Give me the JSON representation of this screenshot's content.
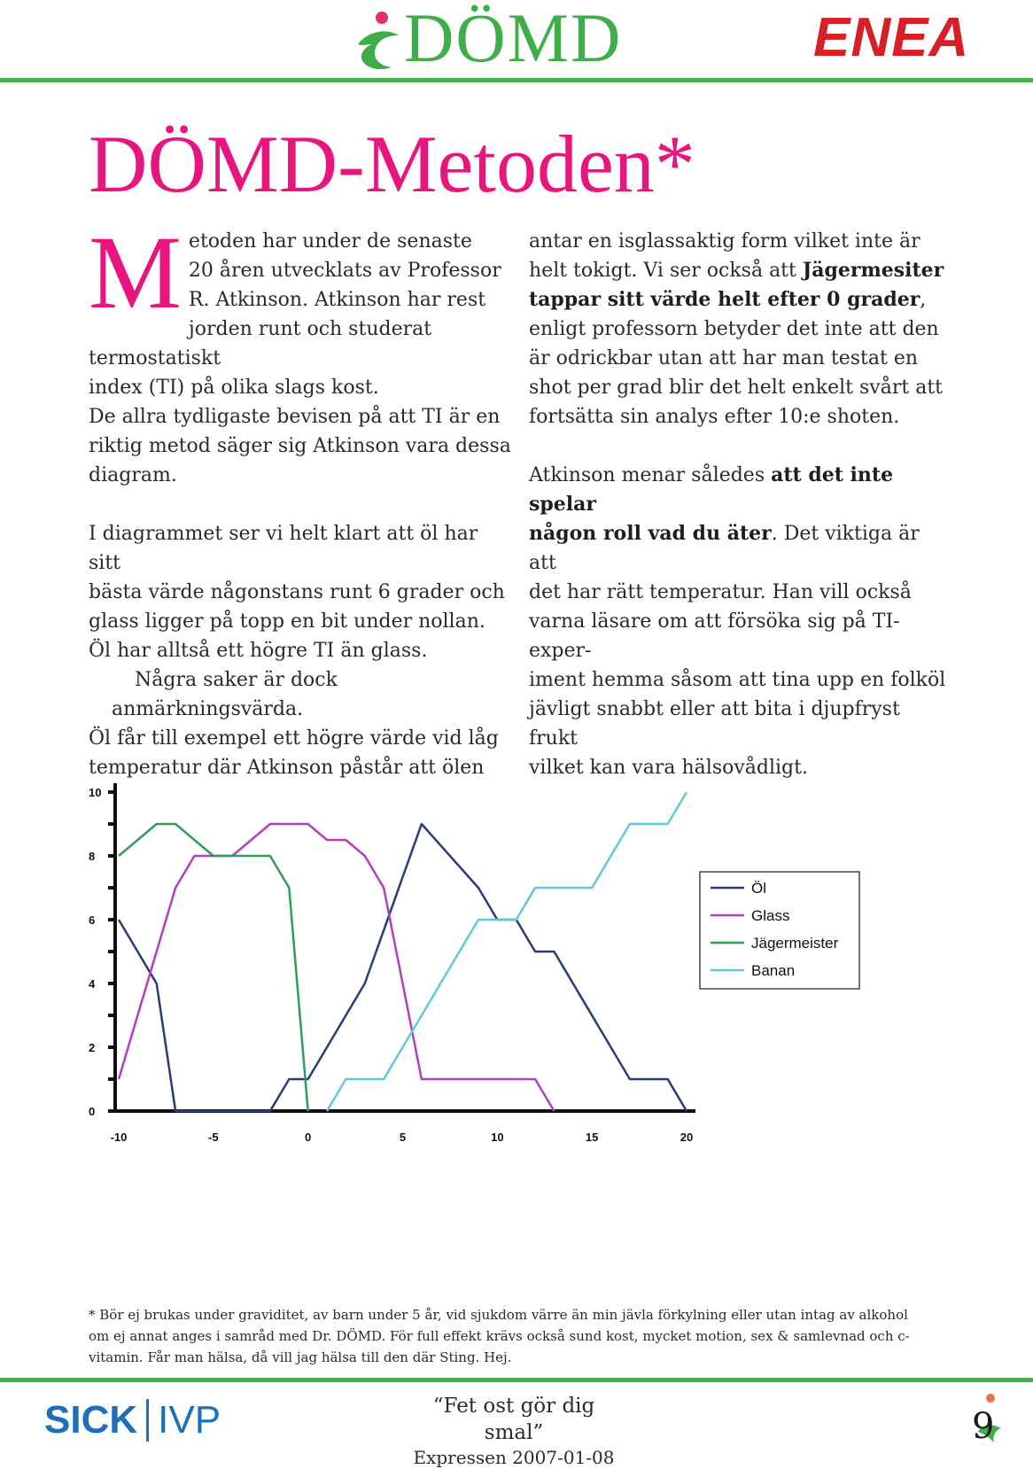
{
  "header": {
    "logo_left": "DÖMD",
    "logo_right": "ENEA"
  },
  "title": "DÖMD-Metoden*",
  "left_column": {
    "drop_cap": "M",
    "p1_lines": [
      "etoden har under de senaste",
      "20 åren utvecklats av Professor",
      "R. Atkinson. Atkinson har rest",
      "jorden runt och studerat termostatiskt",
      "index (TI) på olika slags kost.",
      "De allra tydligaste bevisen på att TI är en",
      "riktig metod säger sig Atkinson vara dessa",
      "diagram."
    ],
    "p2_lines": [
      "I diagrammet ser vi helt klart att öl har sitt",
      "bästa värde någonstans runt 6 grader och",
      "glass ligger på topp en bit under nollan.",
      "Öl har alltså ett högre TI än glass."
    ],
    "p3_lines": [
      "Några saker är dock anmärkningsvärda.",
      "Öl får till exempel ett högre värde vid låg",
      "temperatur där Atkinson påstår att ölen"
    ]
  },
  "right_column": {
    "p1": {
      "line1": "antar en isglassaktig form vilket inte är",
      "line2_pre": "helt tokigt. Vi ser också att ",
      "line2_bold": "Jägermesiter",
      "line3_bold": "tappar sitt värde helt efter 0 grader",
      "line3_post": ",",
      "rest_lines": [
        "enligt professorn betyder det inte att den",
        "är odrickbar utan att har man testat en",
        "shot per grad blir det helt enkelt svårt att",
        "fortsätta sin analys efter 10:e shoten."
      ]
    },
    "p2": {
      "line1_pre": "Atkinson menar således ",
      "line1_bold": "att det inte spelar",
      "line2_bold": "någon roll vad du äter",
      "line2_post": ". Det viktiga är att",
      "rest_lines": [
        "det har rätt temperatur. Han vill också",
        "varna läsare om att försöka sig på TI-exper-",
        "iment hemma såsom att tina upp en folköl",
        "jävligt snabbt eller att bita i djupfryst frukt",
        "vilket kan vara hälsovådligt."
      ]
    }
  },
  "chart_data": {
    "type": "line",
    "title": "",
    "xlabel": "",
    "ylabel": "",
    "xlim": [
      -10,
      20
    ],
    "ylim": [
      0,
      10
    ],
    "x_ticks": [
      -10,
      -5,
      0,
      5,
      10,
      15,
      20
    ],
    "y_ticks": [
      0,
      2,
      4,
      6,
      8,
      10
    ],
    "y_ticks_unlabeled": [
      1,
      3,
      5,
      7,
      9
    ],
    "legend": "right",
    "series": [
      {
        "name": "Öl",
        "color": "#2b3a7a",
        "x": [
          -10,
          -8,
          -7,
          -2,
          -1,
          0,
          3,
          6,
          9,
          10,
          11,
          12,
          13,
          17,
          19,
          20
        ],
        "y": [
          6,
          4,
          0,
          0,
          1,
          1,
          4,
          9,
          7,
          6,
          6,
          5,
          5,
          1,
          1,
          0
        ]
      },
      {
        "name": "Glass",
        "color": "#b33fba",
        "x": [
          -10,
          -7,
          -6,
          -4,
          -2,
          -1,
          0,
          1,
          2,
          3,
          4,
          6,
          12,
          13
        ],
        "y": [
          1,
          7,
          8,
          8,
          9,
          9,
          9,
          8.5,
          8.5,
          8,
          7,
          1,
          1,
          0
        ]
      },
      {
        "name": "Jägermeister",
        "color": "#2e9e58",
        "x": [
          -10,
          -8,
          -7,
          -5,
          -2,
          -1,
          0
        ],
        "y": [
          8,
          9,
          9,
          8,
          8,
          7,
          0
        ]
      },
      {
        "name": "Banan",
        "color": "#5fc9d8",
        "x": [
          1,
          2,
          3,
          4,
          5,
          9,
          11,
          12,
          15,
          17,
          18,
          19,
          20
        ],
        "y": [
          0,
          1,
          1,
          1,
          2,
          6,
          6,
          7,
          7,
          9,
          9,
          9,
          10
        ]
      }
    ]
  },
  "footnote": "* Bör ej brukas under graviditet, av barn under 5 år, vid sjukdom värre än min jävla förkylning eller utan intag av alkohol om ej annat anges i samråd med Dr. DÖMD. För full effekt krävs också sund kost, mycket motion, sex & samlevnad och c-vitamin. Får man hälsa, då vill jag hälsa till den där Sting. Hej.",
  "footer": {
    "logo_left_a": "SICK",
    "logo_left_b": "IVP",
    "quote": "“Fet ost gör dig smal”",
    "source": "Expressen 2007-01-08",
    "page_number": "9"
  }
}
